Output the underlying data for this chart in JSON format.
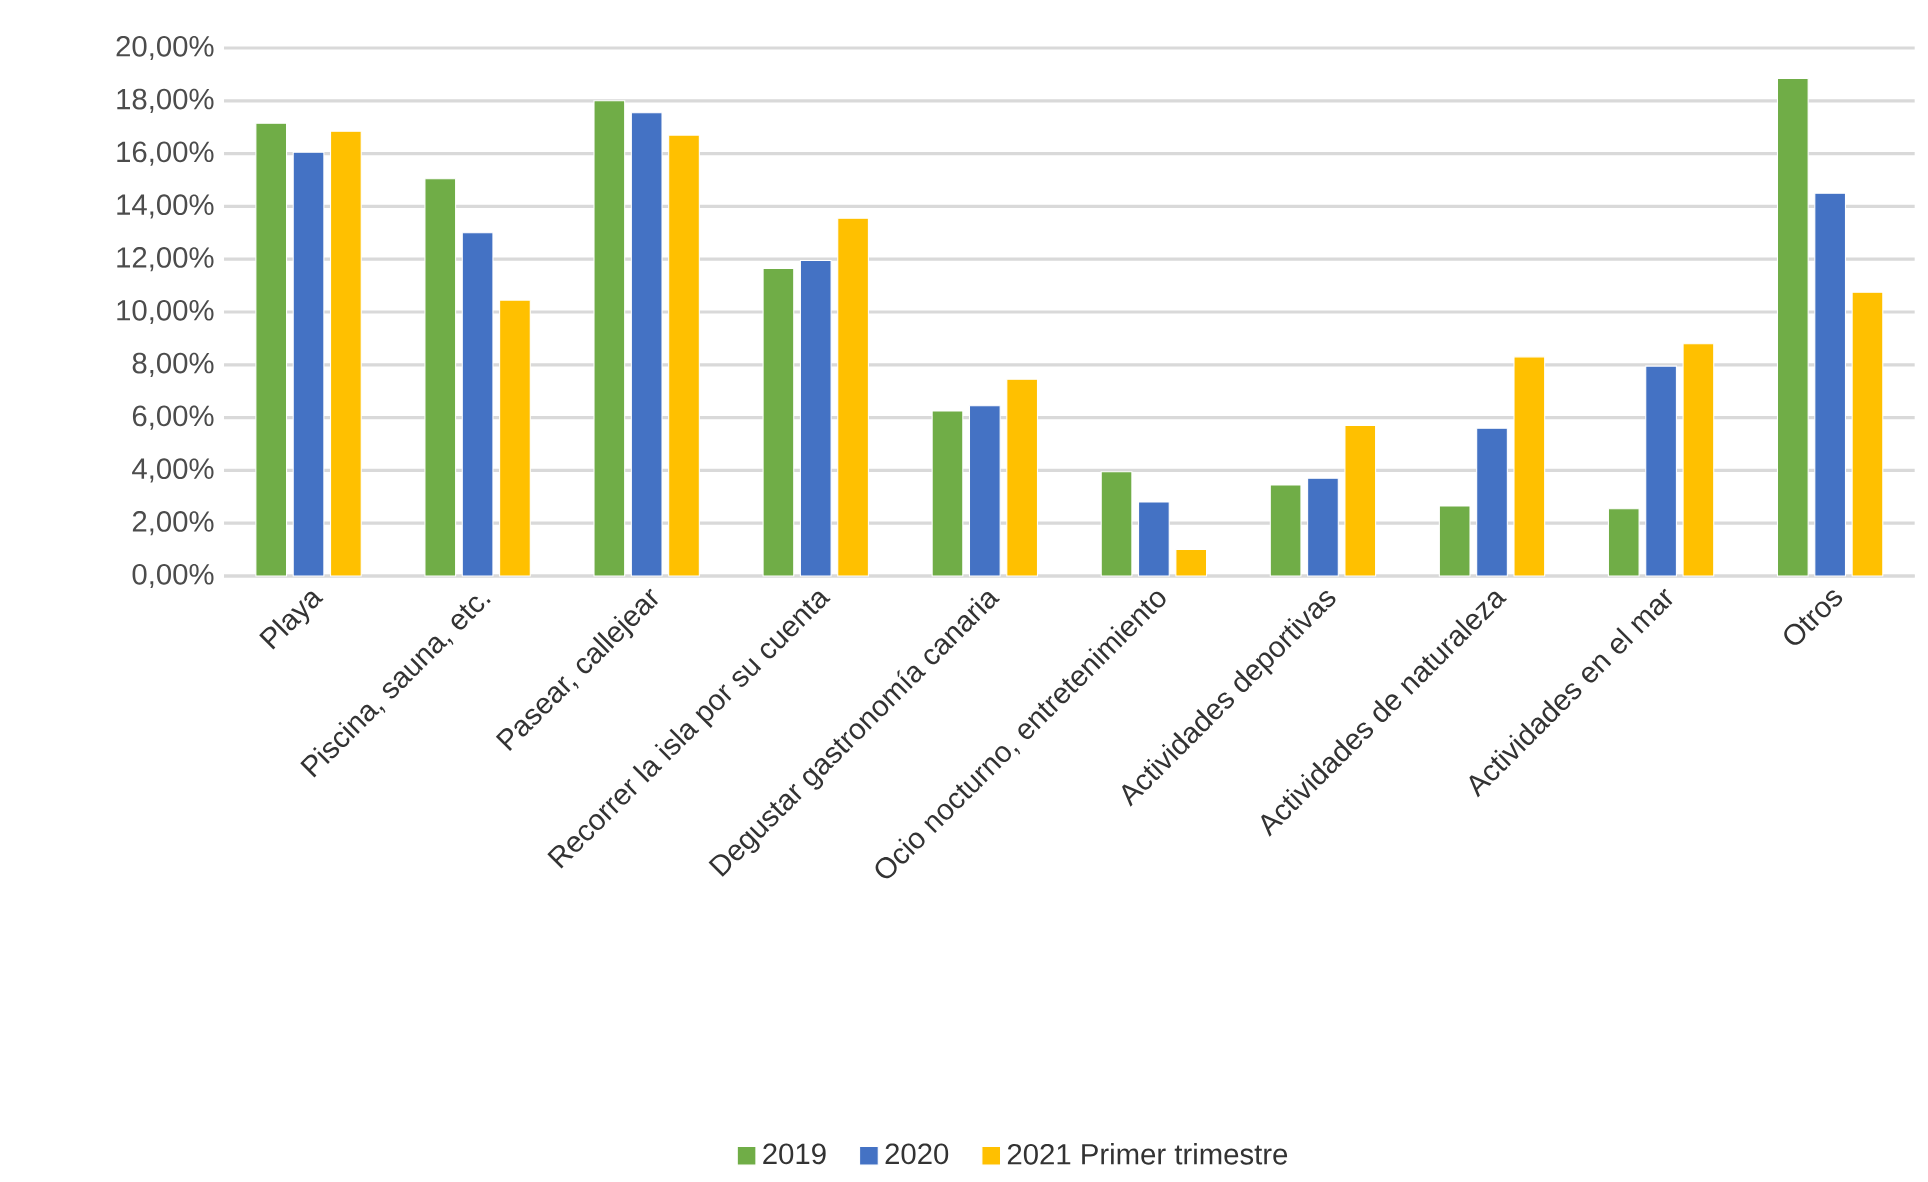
{
  "chart_data": {
    "type": "bar",
    "categories": [
      "Playa",
      "Piscina, sauna, etc.",
      "Pasear, callejear",
      "Recorrer la isla por su cuenta",
      "Degustar gastronomía canaria",
      "Ocio nocturno, entretenimiento",
      "Actividades deportivas",
      "Actividades de naturaleza",
      "Actividades en el mar",
      "Otros"
    ],
    "series": [
      {
        "name": "2019",
        "color": "#70ad47",
        "values": [
          17.15,
          15.05,
          18.0,
          11.65,
          6.25,
          3.95,
          3.45,
          2.65,
          2.55,
          18.85
        ]
      },
      {
        "name": "2020",
        "color": "#4472c4",
        "values": [
          16.05,
          13.0,
          17.55,
          11.95,
          6.45,
          2.8,
          3.7,
          5.6,
          7.95,
          14.5
        ]
      },
      {
        "name": "2021 Primer trimestre",
        "color": "#ffc000",
        "values": [
          16.85,
          10.45,
          16.7,
          13.55,
          7.45,
          1.0,
          5.7,
          8.3,
          8.8,
          10.75
        ]
      }
    ],
    "ylim": [
      0,
      20
    ],
    "yticks": [
      {
        "value": 0,
        "label": "0,00%"
      },
      {
        "value": 2,
        "label": "2,00%"
      },
      {
        "value": 4,
        "label": "4,00%"
      },
      {
        "value": 6,
        "label": "6,00%"
      },
      {
        "value": 8,
        "label": "8,00%"
      },
      {
        "value": 10,
        "label": "10,00%"
      },
      {
        "value": 12,
        "label": "12,00%"
      },
      {
        "value": 14,
        "label": "14,00%"
      },
      {
        "value": 16,
        "label": "16,00%"
      },
      {
        "value": 18,
        "label": "18,00%"
      },
      {
        "value": 20,
        "label": "20,00%"
      }
    ],
    "grid": "y",
    "legend": "bottom"
  }
}
